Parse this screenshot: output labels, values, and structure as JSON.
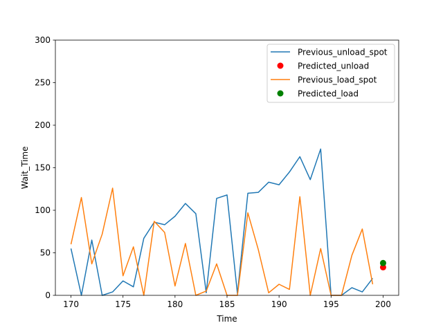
{
  "chart_data": {
    "type": "line",
    "title": "",
    "xlabel": "Time",
    "ylabel": "Wait_Time",
    "xlim": [
      168.5,
      201.5
    ],
    "ylim": [
      0,
      300
    ],
    "xticks": [
      170,
      175,
      180,
      185,
      190,
      195,
      200
    ],
    "yticks": [
      0,
      50,
      100,
      150,
      200,
      250,
      300
    ],
    "grid": false,
    "legend_position": "top-right",
    "series": [
      {
        "name": "Previous_unload_spot",
        "kind": "line",
        "color": "#1f77b4",
        "x": [
          170,
          171,
          172,
          173,
          174,
          175,
          176,
          177,
          178,
          179,
          180,
          181,
          182,
          183,
          184,
          185,
          186,
          187,
          188,
          189,
          190,
          191,
          192,
          193,
          194,
          195,
          196,
          197,
          198,
          199
        ],
        "y": [
          55,
          0,
          65,
          0,
          4,
          17,
          10,
          67,
          86,
          83,
          93,
          108,
          96,
          3,
          114,
          118,
          2,
          120,
          121,
          133,
          130,
          145,
          163,
          136,
          172,
          0,
          0,
          9,
          4,
          20
        ]
      },
      {
        "name": "Predicted_unload",
        "kind": "scatter",
        "color": "#ff0000",
        "x": [
          200
        ],
        "y": [
          33
        ]
      },
      {
        "name": "Previous_load_spot",
        "kind": "line",
        "color": "#ff7f0e",
        "x": [
          170,
          171,
          172,
          173,
          174,
          175,
          176,
          177,
          178,
          179,
          180,
          181,
          182,
          183,
          184,
          185,
          186,
          187,
          188,
          189,
          190,
          191,
          192,
          193,
          194,
          195,
          196,
          197,
          198,
          199
        ],
        "y": [
          60,
          115,
          37,
          72,
          126,
          23,
          57,
          0,
          87,
          74,
          11,
          61,
          0,
          5,
          37,
          0,
          0,
          97,
          54,
          3,
          13,
          7,
          116,
          0,
          55,
          0,
          0,
          47,
          78,
          13
        ]
      },
      {
        "name": "Predicted_load",
        "kind": "scatter",
        "color": "#008000",
        "x": [
          200
        ],
        "y": [
          38
        ]
      }
    ]
  }
}
